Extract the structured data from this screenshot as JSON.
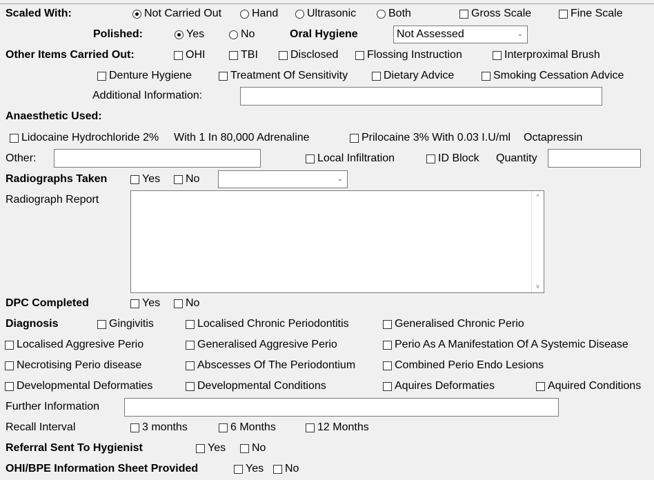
{
  "scaling": {
    "label": "Scaled With:",
    "options": [
      {
        "label": "Not Carried Out",
        "checked": true
      },
      {
        "label": "Hand",
        "checked": false
      },
      {
        "label": "Ultrasonic",
        "checked": false
      },
      {
        "label": "Both",
        "checked": false
      }
    ],
    "gross_scale": {
      "label": "Gross Scale",
      "checked": false
    },
    "fine_scale": {
      "label": "Fine Scale",
      "checked": false
    }
  },
  "polished": {
    "label": "Polished:",
    "options": [
      {
        "label": "Yes",
        "checked": true
      },
      {
        "label": "No",
        "checked": false
      }
    ]
  },
  "oral_hygiene": {
    "label": "Oral Hygiene",
    "value": "Not Assessed"
  },
  "other_items": {
    "label": "Other Items Carried Out:",
    "items": [
      {
        "label": "OHI",
        "checked": false
      },
      {
        "label": "TBI",
        "checked": false
      },
      {
        "label": "Disclosed",
        "checked": false
      },
      {
        "label": "Flossing Instruction",
        "checked": false
      },
      {
        "label": "Interproximal Brush",
        "checked": false
      },
      {
        "label": "Denture Hygiene",
        "checked": false
      },
      {
        "label": "Treatment Of Sensitivity",
        "checked": false
      },
      {
        "label": "Dietary Advice",
        "checked": false
      },
      {
        "label": "Smoking Cessation Advice",
        "checked": false
      }
    ],
    "additional_label": "Additional Information:",
    "additional_value": ""
  },
  "anaesthetic": {
    "label": "Anaesthetic Used:",
    "lidocaine": {
      "label": "Lidocaine Hydrochloride 2%",
      "checked": false
    },
    "lidocaine_suffix": "With 1 In 80,000 Adrenaline",
    "prilocaine": {
      "label": "Prilocaine 3% With 0.03 I.U/ml",
      "checked": false
    },
    "prilocaine_suffix": "Octapressin",
    "other_label": "Other:",
    "other_value": "",
    "local_infiltration": {
      "label": "Local Infiltration",
      "checked": false
    },
    "id_block": {
      "label": "ID Block",
      "checked": false
    },
    "quantity_label": "Quantity",
    "quantity_value": ""
  },
  "radiographs": {
    "label": "Radiographs Taken",
    "yes": {
      "label": "Yes",
      "checked": false
    },
    "no": {
      "label": "No",
      "checked": false
    },
    "type_value": "",
    "report_label": "Radiograph Report",
    "report_value": ""
  },
  "dpc": {
    "label": "DPC Completed",
    "yes": {
      "label": "Yes",
      "checked": false
    },
    "no": {
      "label": "No",
      "checked": false
    }
  },
  "diagnosis": {
    "label": "Diagnosis",
    "items": [
      {
        "label": "Gingivitis",
        "checked": false
      },
      {
        "label": "Localised Chronic Periodontitis",
        "checked": false
      },
      {
        "label": "Generalised Chronic Perio",
        "checked": false
      },
      {
        "label": "Localised Aggresive Perio",
        "checked": false
      },
      {
        "label": "Generalised Aggresive Perio",
        "checked": false
      },
      {
        "label": "Perio As A Manifestation Of A Systemic Disease",
        "checked": false
      },
      {
        "label": "Necrotising Perio disease",
        "checked": false
      },
      {
        "label": "Abscesses Of The Periodontium",
        "checked": false
      },
      {
        "label": "Combined Perio Endo Lesions",
        "checked": false
      },
      {
        "label": "Developmental Deformaties",
        "checked": false
      },
      {
        "label": "Developmental Conditions",
        "checked": false
      },
      {
        "label": "Aquires Deformaties",
        "checked": false
      },
      {
        "label": "Aquired Conditions",
        "checked": false
      }
    ],
    "further_label": "Further Information",
    "further_value": ""
  },
  "recall": {
    "label": "Recall Interval",
    "options": [
      {
        "label": "3 months",
        "checked": false
      },
      {
        "label": "6 Months",
        "checked": false
      },
      {
        "label": "12 Months",
        "checked": false
      }
    ]
  },
  "referral": {
    "label": "Referral Sent To Hygienist",
    "yes": {
      "label": "Yes",
      "checked": false
    },
    "no": {
      "label": "No",
      "checked": false
    }
  },
  "info_sheet": {
    "label": "OHI/BPE Information Sheet Provided",
    "yes": {
      "label": "Yes",
      "checked": false
    },
    "no": {
      "label": "No",
      "checked": false
    }
  }
}
